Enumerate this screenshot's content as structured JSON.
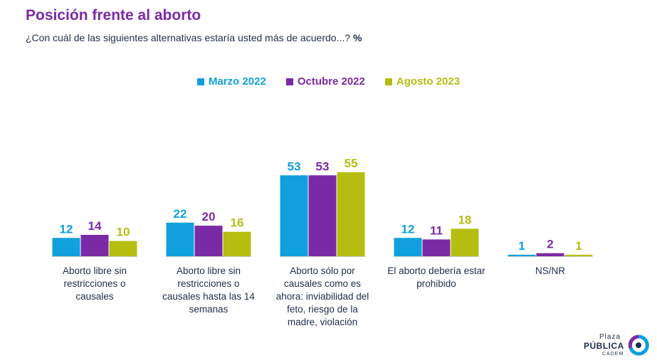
{
  "title": "Posición frente al aborto",
  "subtitle": "¿Con cuál de las siguientes alternativas estaría usted más de acuerdo...?",
  "unit": "%",
  "logo": {
    "line1": "Plaza",
    "line2": "PÚBLICA",
    "line3": "CADEM",
    "icon": "plaza-publica-logo-icon"
  },
  "colors": {
    "title": "#7b2aa6",
    "text": "#1f2f4d",
    "axis": "#c8c8c8"
  },
  "chart_data": {
    "type": "bar",
    "categories": [
      "Aborto libre sin restricciones o causales",
      "Aborto libre sin restricciones o causales hasta las 14 semanas",
      "Aborto sólo por causales como es ahora: inviabilidad del feto, riesgo de la madre, violación",
      "El aborto debería estar prohibido",
      "NS/NR"
    ],
    "category_lines": [
      [
        "Aborto libre sin",
        "restricciones o",
        "causales"
      ],
      [
        "Aborto libre sin",
        "restricciones o",
        "causales hasta las 14",
        "semanas"
      ],
      [
        "Aborto sólo por",
        "causales como es",
        "ahora: inviabilidad del",
        "feto, riesgo de la",
        "madre, violación"
      ],
      [
        "El aborto debería estar",
        "prohibido"
      ],
      [
        "NS/NR"
      ]
    ],
    "series": [
      {
        "name": "Marzo 2022",
        "color": "#0fa0dd",
        "values": [
          12,
          22,
          53,
          12,
          1
        ]
      },
      {
        "name": "Octubre 2022",
        "color": "#7b2aa6",
        "values": [
          14,
          20,
          53,
          11,
          2
        ]
      },
      {
        "name": "Agosto 2023",
        "color": "#b5bd10",
        "values": [
          10,
          16,
          55,
          18,
          1
        ]
      }
    ],
    "ylim": [
      0,
      55
    ],
    "legend_position": "top-center",
    "grid": false,
    "data_labels": true
  }
}
